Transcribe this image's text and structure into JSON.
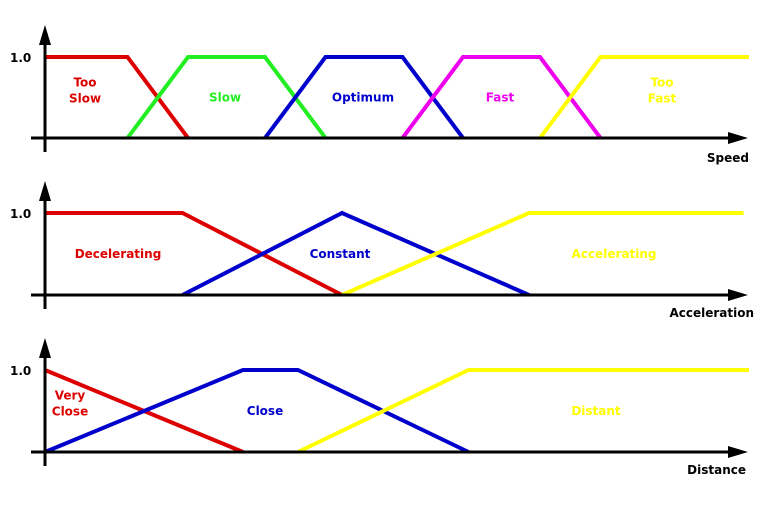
{
  "charts": [
    {
      "id": "speed",
      "axis_label": "Speed",
      "y_tick_label": "1.0",
      "sets": [
        {
          "name": "too-slow",
          "label_lines": [
            "Too",
            "Slow"
          ],
          "color": "#dd0000",
          "points": [
            [
              0,
              1
            ],
            [
              1.5,
              1
            ],
            [
              2.6,
              0
            ]
          ]
        },
        {
          "name": "slow",
          "label_lines": [
            "Slow"
          ],
          "color": "#22ee22",
          "points": [
            [
              1.5,
              0
            ],
            [
              2.6,
              1
            ],
            [
              4,
              1
            ],
            [
              5.1,
              0
            ]
          ]
        },
        {
          "name": "optimum",
          "label_lines": [
            "Optimum"
          ],
          "color": "#0000cc",
          "points": [
            [
              4,
              0
            ],
            [
              5.1,
              1
            ],
            [
              6.5,
              1
            ],
            [
              7.6,
              0
            ]
          ]
        },
        {
          "name": "fast",
          "label_lines": [
            "Fast"
          ],
          "color": "#ee00ee",
          "points": [
            [
              6.5,
              0
            ],
            [
              7.6,
              1
            ],
            [
              9,
              1
            ],
            [
              10.1,
              0
            ]
          ]
        },
        {
          "name": "too-fast",
          "label_lines": [
            "Too",
            "Fast"
          ],
          "color": "#ffff00",
          "points": [
            [
              9,
              0
            ],
            [
              10.1,
              1
            ],
            [
              12.8,
              1
            ]
          ]
        }
      ]
    },
    {
      "id": "acceleration",
      "axis_label": "Acceleration",
      "y_tick_label": "1.0",
      "sets": [
        {
          "name": "decelerating",
          "label_lines": [
            "Decelerating"
          ],
          "color": "#dd0000",
          "points": [
            [
              0,
              1
            ],
            [
              2.5,
              1
            ],
            [
              5.4,
              0
            ]
          ]
        },
        {
          "name": "constant",
          "label_lines": [
            "Constant"
          ],
          "color": "#0000cc",
          "points": [
            [
              2.5,
              0
            ],
            [
              5.4,
              1
            ],
            [
              8.8,
              0
            ]
          ]
        },
        {
          "name": "accelerating",
          "label_lines": [
            "Accelerating"
          ],
          "color": "#ffff00",
          "points": [
            [
              5.4,
              0
            ],
            [
              8.8,
              1
            ],
            [
              12.7,
              1
            ]
          ]
        }
      ]
    },
    {
      "id": "distance",
      "axis_label": "Distance",
      "y_tick_label": "1.0",
      "sets": [
        {
          "name": "very-close",
          "label_lines": [
            "Very",
            "Close"
          ],
          "color": "#dd0000",
          "points": [
            [
              0,
              1
            ],
            [
              3.6,
              0
            ]
          ]
        },
        {
          "name": "close",
          "label_lines": [
            "Close"
          ],
          "color": "#0000cc",
          "points": [
            [
              0,
              0
            ],
            [
              3.6,
              1
            ],
            [
              4.6,
              1
            ],
            [
              7.7,
              0
            ]
          ]
        },
        {
          "name": "distant",
          "label_lines": [
            "Distant"
          ],
          "color": "#ffff00",
          "points": [
            [
              4.6,
              0
            ],
            [
              7.7,
              1
            ],
            [
              12.8,
              1
            ]
          ]
        }
      ]
    }
  ]
}
